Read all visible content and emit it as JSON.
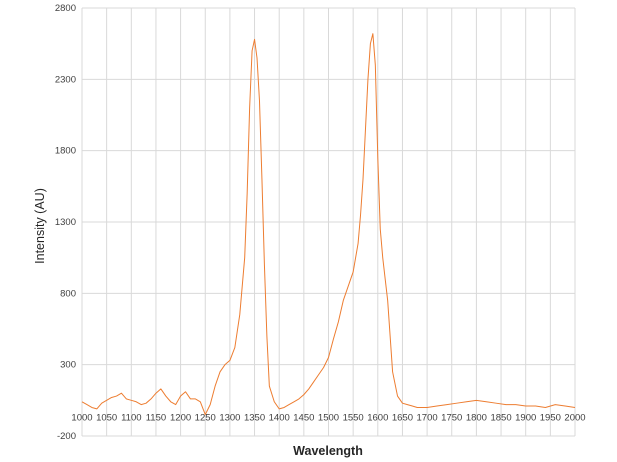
{
  "chart_data": {
    "type": "line",
    "title": "",
    "xlabel": "Wavelength",
    "ylabel": "Intensity (AU)",
    "xlim": [
      1000,
      2000
    ],
    "ylim": [
      -200,
      2800
    ],
    "x_ticks": [
      1000,
      1050,
      1100,
      1150,
      1200,
      1250,
      1300,
      1350,
      1400,
      1450,
      1500,
      1550,
      1600,
      1650,
      1700,
      1750,
      1800,
      1850,
      1900,
      1950,
      2000
    ],
    "y_ticks": [
      -200,
      300,
      800,
      1300,
      1800,
      2300,
      2800
    ],
    "grid": true,
    "legend": "none",
    "series": [
      {
        "color": "#ed7d31",
        "x": [
          1000,
          1010,
          1020,
          1030,
          1040,
          1050,
          1060,
          1070,
          1080,
          1090,
          1100,
          1110,
          1120,
          1130,
          1140,
          1150,
          1160,
          1170,
          1180,
          1190,
          1200,
          1210,
          1220,
          1230,
          1240,
          1250,
          1260,
          1270,
          1280,
          1290,
          1300,
          1310,
          1320,
          1330,
          1335,
          1340,
          1345,
          1350,
          1355,
          1360,
          1365,
          1370,
          1375,
          1380,
          1390,
          1400,
          1410,
          1420,
          1430,
          1440,
          1450,
          1460,
          1470,
          1480,
          1490,
          1500,
          1510,
          1520,
          1530,
          1540,
          1550,
          1560,
          1565,
          1570,
          1575,
          1580,
          1585,
          1590,
          1595,
          1600,
          1605,
          1610,
          1615,
          1620,
          1625,
          1630,
          1640,
          1650,
          1660,
          1670,
          1680,
          1700,
          1720,
          1740,
          1760,
          1780,
          1800,
          1820,
          1840,
          1860,
          1880,
          1900,
          1920,
          1940,
          1960,
          1980,
          2000
        ],
        "y": [
          40,
          20,
          0,
          -10,
          30,
          50,
          70,
          80,
          100,
          60,
          50,
          40,
          20,
          30,
          60,
          100,
          130,
          80,
          40,
          20,
          80,
          110,
          60,
          60,
          40,
          -50,
          20,
          150,
          250,
          300,
          330,
          420,
          650,
          1050,
          1500,
          2100,
          2500,
          2580,
          2450,
          2150,
          1600,
          1000,
          500,
          150,
          40,
          -10,
          0,
          20,
          40,
          60,
          90,
          130,
          180,
          230,
          280,
          350,
          480,
          600,
          750,
          850,
          950,
          1150,
          1350,
          1600,
          1950,
          2300,
          2550,
          2620,
          2400,
          1750,
          1250,
          1050,
          900,
          750,
          500,
          250,
          80,
          30,
          20,
          10,
          0,
          0,
          10,
          20,
          30,
          40,
          50,
          40,
          30,
          20,
          20,
          10,
          10,
          0,
          20,
          10,
          0
        ]
      }
    ]
  }
}
